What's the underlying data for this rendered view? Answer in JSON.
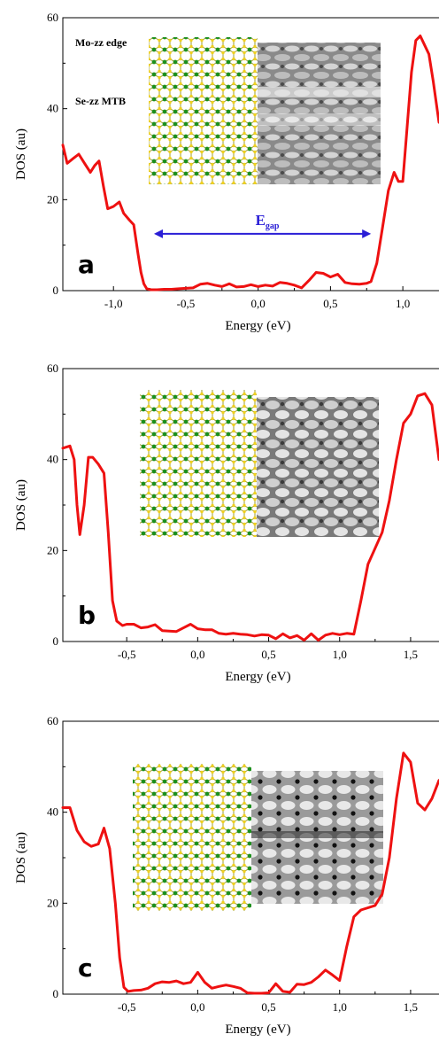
{
  "chart_data": [
    {
      "type": "line",
      "panel_label": "a",
      "xlabel": "Energy (eV)",
      "ylabel": "DOS (au)",
      "xlim": [
        -1.35,
        1.25
      ],
      "ylim": [
        0,
        60
      ],
      "xticks": [
        -1.0,
        -0.5,
        0.0,
        0.5,
        1.0
      ],
      "xtick_labels": [
        "-1,0",
        "-0,5",
        "0,0",
        "0,5",
        "1,0"
      ],
      "yticks": [
        0,
        20,
        40,
        60
      ],
      "ytick_labels": [
        "0",
        "20",
        "40",
        "60"
      ],
      "grid": false,
      "line_color": "#ee1111",
      "series": [
        {
          "x": [
            -1.35,
            -1.32,
            -1.28,
            -1.24,
            -1.2,
            -1.16,
            -1.13,
            -1.1,
            -1.07,
            -1.04,
            -1.0,
            -0.96,
            -0.93,
            -0.89,
            -0.86,
            -0.83,
            -0.81,
            -0.79,
            -0.77,
            -0.74,
            -0.7,
            -0.65,
            -0.6,
            -0.55,
            -0.5,
            -0.45,
            -0.4,
            -0.35,
            -0.3,
            -0.25,
            -0.2,
            -0.15,
            -0.1,
            -0.05,
            0.0,
            0.05,
            0.1,
            0.15,
            0.2,
            0.25,
            0.3,
            0.35,
            0.4,
            0.45,
            0.5,
            0.55,
            0.6,
            0.65,
            0.7,
            0.75,
            0.78,
            0.82,
            0.86,
            0.9,
            0.94,
            0.97,
            1.0,
            1.03,
            1.06,
            1.09,
            1.12,
            1.15,
            1.18,
            1.21,
            1.25
          ],
          "y": [
            32,
            28,
            29,
            30,
            28,
            26,
            27.5,
            28.5,
            23,
            18,
            18.5,
            19.5,
            17,
            15.5,
            14.5,
            8,
            4,
            1.5,
            0.4,
            0.2,
            0.2,
            0.3,
            0.3,
            0.4,
            0.5,
            0.6,
            1.4,
            1.6,
            1.2,
            0.9,
            1.5,
            0.8,
            0.9,
            1.3,
            0.9,
            1.2,
            1.0,
            1.8,
            1.6,
            1.2,
            0.6,
            2.2,
            4.0,
            3.8,
            3.0,
            3.6,
            1.8,
            1.5,
            1.4,
            1.6,
            2.0,
            6.0,
            14,
            22,
            26,
            24,
            24,
            36,
            48,
            55,
            56,
            54,
            52,
            46,
            37
          ]
        }
      ],
      "annotation": {
        "text": "E",
        "subscript": "gap",
        "from": -0.72,
        "to": 0.78,
        "y": 12.5,
        "color": "#2a1ed6"
      },
      "inset_labels": [
        "Mo-zz edge",
        "Se-zz MTB"
      ]
    },
    {
      "type": "line",
      "panel_label": "b",
      "xlabel": "Energy (eV)",
      "ylabel": "DOS (au)",
      "xlim": [
        -0.95,
        1.7
      ],
      "ylim": [
        0,
        60
      ],
      "xticks": [
        -0.5,
        0.0,
        0.5,
        1.0,
        1.5
      ],
      "xtick_labels": [
        "-0,5",
        "0,0",
        "0,5",
        "1,0",
        "1,5"
      ],
      "yticks": [
        0,
        20,
        40,
        60
      ],
      "ytick_labels": [
        "0",
        "20",
        "40",
        "60"
      ],
      "grid": false,
      "line_color": "#ee1111",
      "series": [
        {
          "x": [
            -0.95,
            -0.9,
            -0.87,
            -0.85,
            -0.83,
            -0.8,
            -0.77,
            -0.74,
            -0.7,
            -0.66,
            -0.63,
            -0.6,
            -0.57,
            -0.53,
            -0.5,
            -0.45,
            -0.4,
            -0.35,
            -0.3,
            -0.25,
            -0.2,
            -0.15,
            -0.1,
            -0.05,
            0.0,
            0.05,
            0.1,
            0.15,
            0.2,
            0.25,
            0.3,
            0.35,
            0.4,
            0.45,
            0.5,
            0.55,
            0.6,
            0.65,
            0.7,
            0.75,
            0.8,
            0.85,
            0.9,
            0.95,
            1.0,
            1.05,
            1.1,
            1.15,
            1.2,
            1.25,
            1.3,
            1.35,
            1.4,
            1.45,
            1.5,
            1.55,
            1.6,
            1.65,
            1.7
          ],
          "y": [
            42.5,
            43,
            40,
            30,
            23.5,
            30,
            40.5,
            40.5,
            39,
            37,
            24,
            9,
            4.5,
            3.5,
            3.8,
            3.8,
            3.0,
            3.2,
            3.7,
            2.4,
            2.3,
            2.2,
            3.0,
            3.8,
            2.8,
            2.6,
            2.6,
            1.8,
            1.6,
            1.8,
            1.6,
            1.5,
            1.2,
            1.5,
            1.4,
            0.6,
            1.7,
            0.8,
            1.3,
            0.3,
            1.7,
            0.3,
            1.4,
            1.8,
            1.5,
            1.8,
            1.6,
            9,
            17,
            20.5,
            24,
            31,
            40,
            48,
            50,
            54,
            54.5,
            52,
            40
          ]
        }
      ]
    },
    {
      "type": "line",
      "panel_label": "c",
      "xlabel": "Energy (eV)",
      "ylabel": "DOS (au)",
      "xlim": [
        -0.95,
        1.7
      ],
      "ylim": [
        0,
        60
      ],
      "xticks": [
        -0.5,
        0.0,
        0.5,
        1.0,
        1.5
      ],
      "xtick_labels": [
        "-0,5",
        "0,0",
        "0,5",
        "1,0",
        "1,5"
      ],
      "yticks": [
        0,
        20,
        40,
        60
      ],
      "ytick_labels": [
        "0",
        "20",
        "40",
        "60"
      ],
      "grid": false,
      "line_color": "#ee1111",
      "series": [
        {
          "x": [
            -0.95,
            -0.9,
            -0.85,
            -0.8,
            -0.75,
            -0.7,
            -0.66,
            -0.62,
            -0.58,
            -0.55,
            -0.52,
            -0.49,
            -0.45,
            -0.4,
            -0.35,
            -0.3,
            -0.25,
            -0.2,
            -0.15,
            -0.1,
            -0.05,
            0.0,
            0.05,
            0.1,
            0.15,
            0.2,
            0.25,
            0.3,
            0.35,
            0.4,
            0.45,
            0.5,
            0.55,
            0.6,
            0.65,
            0.7,
            0.75,
            0.8,
            0.85,
            0.9,
            0.95,
            1.0,
            1.05,
            1.1,
            1.15,
            1.2,
            1.25,
            1.3,
            1.35,
            1.4,
            1.45,
            1.5,
            1.55,
            1.6,
            1.65,
            1.7
          ],
          "y": [
            41,
            41,
            36,
            33.5,
            32.5,
            33,
            36.5,
            32,
            20,
            8,
            1.5,
            0.6,
            0.8,
            0.9,
            1.3,
            2.3,
            2.7,
            2.6,
            2.9,
            2.3,
            2.6,
            4.8,
            2.6,
            1.3,
            1.7,
            2.0,
            1.7,
            1.3,
            0.3,
            0.2,
            0.2,
            0.3,
            2.3,
            0.6,
            0.4,
            2.2,
            2.1,
            2.6,
            3.8,
            5.3,
            4.2,
            3.0,
            10.5,
            17,
            18.5,
            19,
            19.5,
            22,
            30,
            43,
            53,
            51,
            42,
            40.5,
            43,
            47
          ]
        }
      ]
    }
  ]
}
